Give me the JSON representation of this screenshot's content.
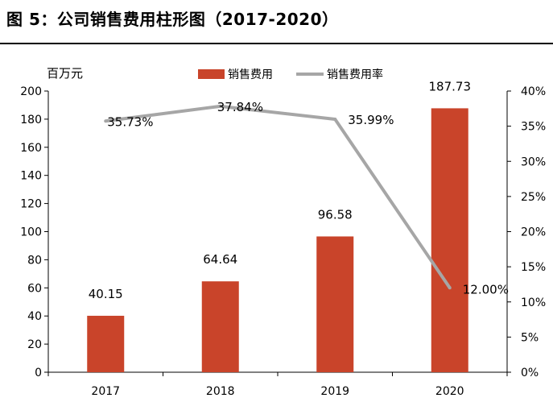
{
  "figure": {
    "title": "图 5：公司销售费用柱形图（2017-2020）"
  },
  "chart_data": {
    "type": "bar",
    "categories": [
      "2017",
      "2018",
      "2019",
      "2020"
    ],
    "series": [
      {
        "name": "销售费用",
        "type": "bar",
        "axis": "left",
        "color": "#C9442A",
        "values": [
          40.15,
          64.64,
          96.58,
          187.73
        ],
        "labels": [
          "40.15",
          "64.64",
          "96.58",
          "187.73"
        ]
      },
      {
        "name": "销售费用率",
        "type": "line",
        "axis": "right",
        "color": "#A6A6A6",
        "values": [
          35.73,
          37.84,
          35.99,
          12.0
        ],
        "labels": [
          "35.73%",
          "37.84%",
          "35.99%",
          "12.00%"
        ]
      }
    ],
    "left_axis": {
      "unit_label": "百万元",
      "ylim": [
        0,
        200
      ],
      "ticks": [
        "0",
        "20",
        "40",
        "60",
        "80",
        "100",
        "120",
        "140",
        "160",
        "180",
        "200"
      ]
    },
    "right_axis": {
      "ylim": [
        0,
        40
      ],
      "ticks": [
        "0%",
        "5%",
        "10%",
        "15%",
        "20%",
        "25%",
        "30%",
        "35%",
        "40%"
      ]
    },
    "legend": "top",
    "grid": false
  }
}
